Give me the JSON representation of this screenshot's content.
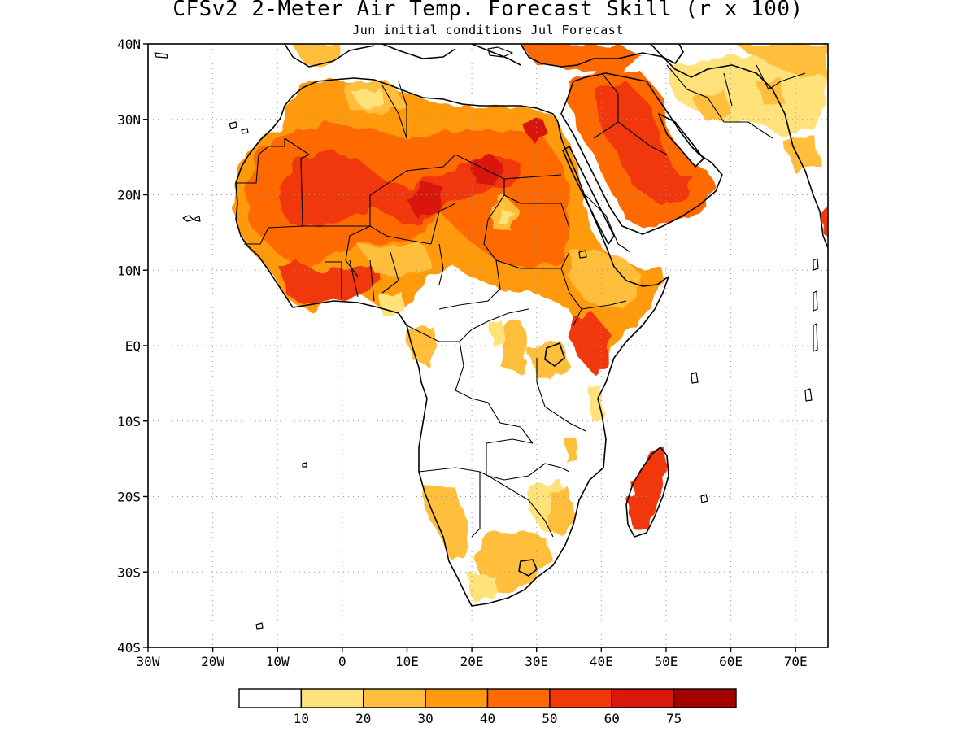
{
  "title": "CFSv2 2-Meter Air Temp. Forecast Skill (r x 100)",
  "subtitle": "Jun initial conditions  Jul Forecast",
  "map": {
    "lon_range": [
      -30,
      75
    ],
    "lat_range": [
      -40,
      40
    ],
    "grid": "dotted",
    "lat_ticks": [
      {
        "value": 40,
        "label": "40N"
      },
      {
        "value": 30,
        "label": "30N"
      },
      {
        "value": 20,
        "label": "20N"
      },
      {
        "value": 10,
        "label": "10N"
      },
      {
        "value": 0,
        "label": "EQ"
      },
      {
        "value": -10,
        "label": "10S"
      },
      {
        "value": -20,
        "label": "20S"
      },
      {
        "value": -30,
        "label": "30S"
      },
      {
        "value": -40,
        "label": "40S"
      }
    ],
    "lon_ticks": [
      {
        "value": -30,
        "label": "30W"
      },
      {
        "value": -20,
        "label": "20W"
      },
      {
        "value": -10,
        "label": "10W"
      },
      {
        "value": 0,
        "label": "0"
      },
      {
        "value": 10,
        "label": "10E"
      },
      {
        "value": 20,
        "label": "20E"
      },
      {
        "value": 30,
        "label": "30E"
      },
      {
        "value": 40,
        "label": "40E"
      },
      {
        "value": 50,
        "label": "50E"
      },
      {
        "value": 60,
        "label": "60E"
      },
      {
        "value": 70,
        "label": "70E"
      }
    ]
  },
  "colorbar": {
    "colors": [
      "#ffffff",
      "#ffe27a",
      "#ffbf3d",
      "#ff9a10",
      "#ff6a00",
      "#f13808",
      "#d81808",
      "#a40000"
    ],
    "labels": [
      "10",
      "20",
      "30",
      "40",
      "50",
      "60",
      "75"
    ]
  }
}
